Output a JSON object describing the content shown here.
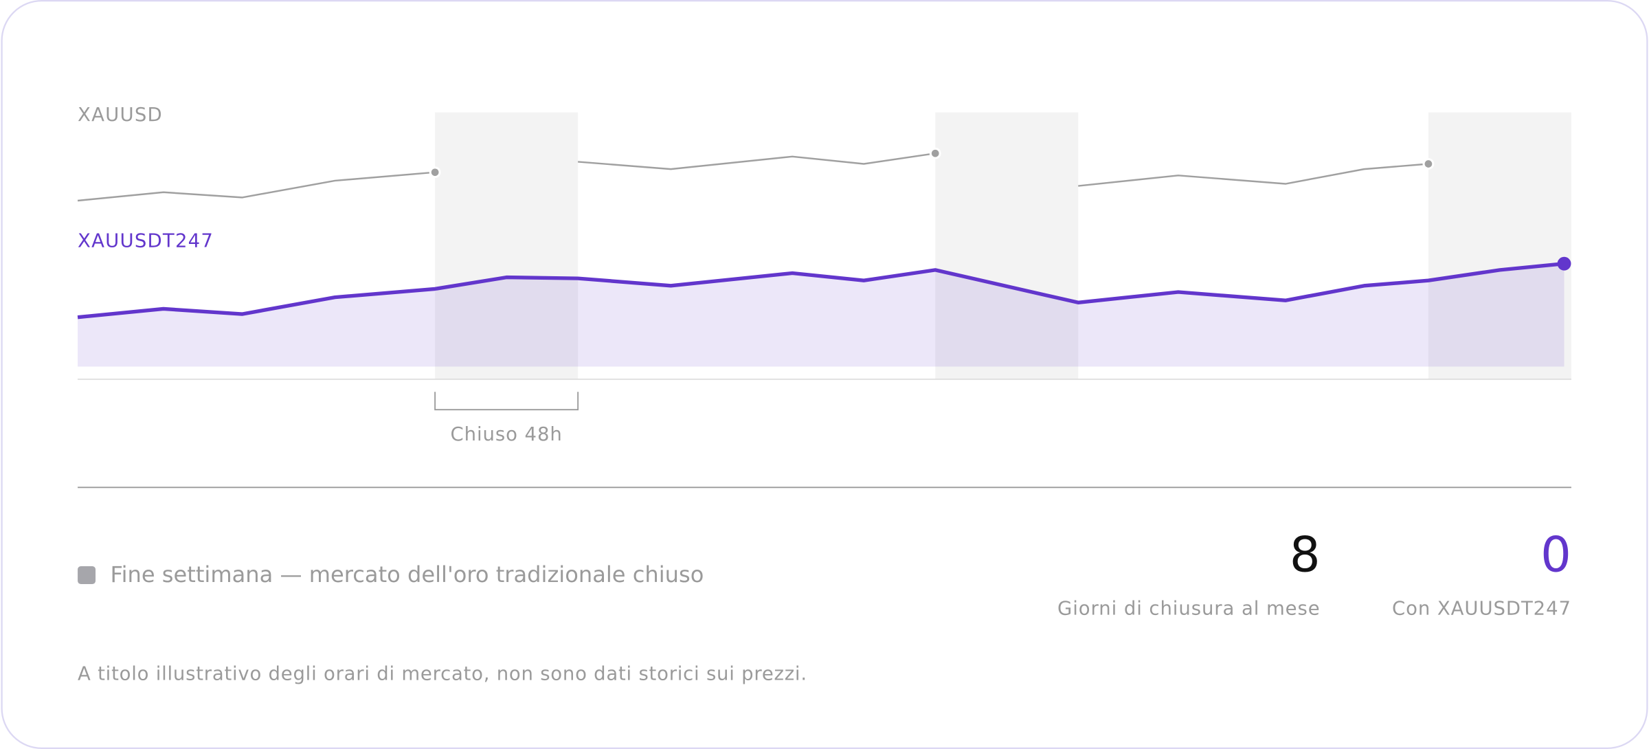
{
  "chart_data": {
    "type": "line",
    "xlim": [
      0,
      20.9
    ],
    "ylim": [
      39,
      293
    ],
    "weekend_bands": [
      [
        5,
        7
      ],
      [
        12,
        14
      ],
      [
        18.9,
        20.9
      ]
    ],
    "annotation": "Chiuso 48h",
    "series": [
      {
        "name": "XAUUSD",
        "color": "#a0a0a0",
        "area": false,
        "markers": [
          4,
          10,
          16
        ],
        "x": [
          0,
          1.2,
          2.3,
          3.6,
          5,
          null,
          7,
          8.3,
          10,
          11,
          12,
          null,
          14,
          15.4,
          16.9,
          18,
          18.9
        ],
        "values": [
          209,
          217,
          212,
          228,
          236,
          null,
          246,
          239,
          251,
          244,
          254,
          null,
          223,
          233,
          225,
          239,
          244
        ]
      },
      {
        "name": "XAUUSDT247",
        "color": "#6236cc",
        "area": true,
        "markers": [
          17
        ],
        "x": [
          0,
          1.2,
          2.3,
          3.6,
          5,
          6,
          7,
          8.3,
          10,
          11,
          12,
          14,
          15.4,
          16.9,
          18,
          18.9,
          19.9,
          20.8
        ],
        "values": [
          98,
          106,
          101,
          117,
          125,
          136,
          135,
          128,
          140,
          133,
          143,
          112,
          122,
          114,
          128,
          133,
          143,
          149
        ]
      }
    ]
  },
  "legend": {
    "text": "Fine settimana — mercato dell'oro tradizionale chiuso"
  },
  "stats": [
    {
      "value": 8,
      "label": "Giorni di chiusura al mese"
    },
    {
      "value": 0,
      "label": "Con XAUUSDT247"
    }
  ],
  "footnote": "A titolo illustrativo degli orari di mercato, non sono dati storici sui prezzi."
}
